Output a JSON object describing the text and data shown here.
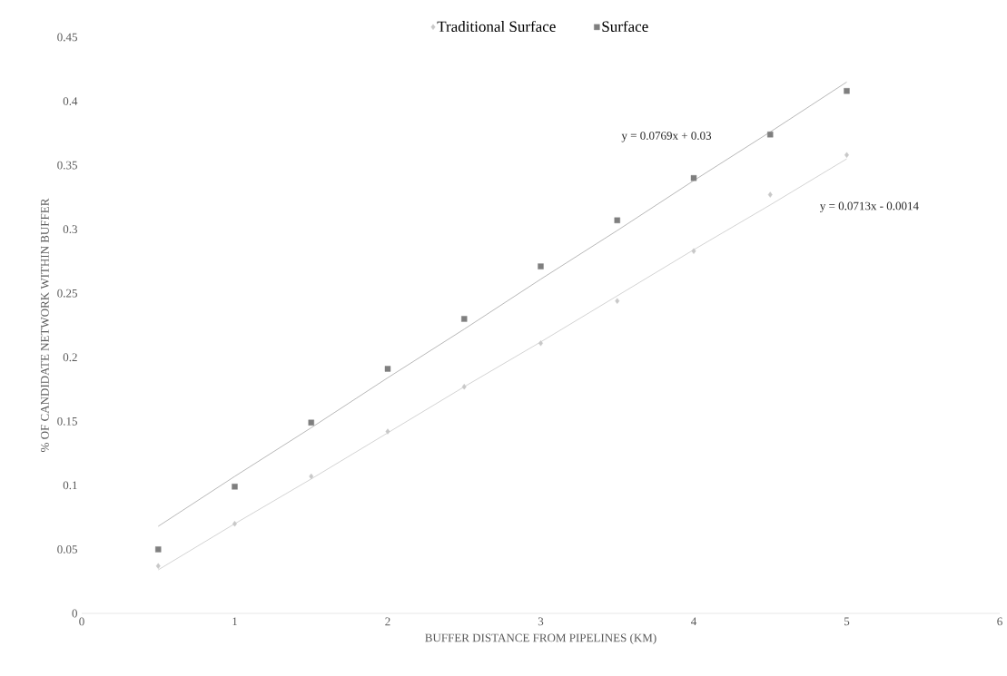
{
  "chart_data": {
    "type": "scatter",
    "xlabel": "BUFFER DISTANCE FROM PIPELINES (KM)",
    "ylabel": "% OF CANDIDATE NETWORK WITHIN BUFFER",
    "x": [
      0.5,
      1,
      1.5,
      2,
      2.5,
      3,
      3.5,
      4,
      4.5,
      5
    ],
    "series": [
      {
        "name": "Traditional Surface",
        "color": "#c8c8c8",
        "marker": "diamond",
        "values": [
          0.037,
          0.07,
          0.107,
          0.142,
          0.177,
          0.211,
          0.244,
          0.283,
          0.327,
          0.358
        ]
      },
      {
        "name": "Surface",
        "color": "#7f7f7f",
        "marker": "square",
        "values": [
          0.05,
          0.099,
          0.149,
          0.191,
          0.23,
          0.271,
          0.307,
          0.34,
          0.374,
          0.408
        ]
      },
      {
        "type": "line",
        "color": "#a6a6a6",
        "marker": "none",
        "values": [
          0.068,
          0.107,
          0.145,
          0.184,
          0.222,
          0.261,
          0.299,
          0.338,
          0.376,
          0.415
        ]
      },
      {
        "type": "line",
        "color": "#c8c8c8",
        "marker": "none",
        "values": [
          0.034,
          0.07,
          0.105,
          0.141,
          0.177,
          0.212,
          0.248,
          0.284,
          0.319,
          0.355
        ]
      }
    ],
    "annotations": [
      "y = 0.0769x + 0.03",
      "y = 0.0713x - 0.0014"
    ],
    "xlim": [
      0,
      6
    ],
    "xticks": [
      0,
      1,
      2,
      3,
      4,
      5,
      6
    ],
    "ylim": [
      0,
      0.45
    ],
    "yticks": [
      0,
      0.05,
      0.1,
      0.15,
      0.2,
      0.25,
      0.3,
      0.35,
      0.4,
      0.45
    ],
    "grid": false,
    "legend": "top"
  }
}
